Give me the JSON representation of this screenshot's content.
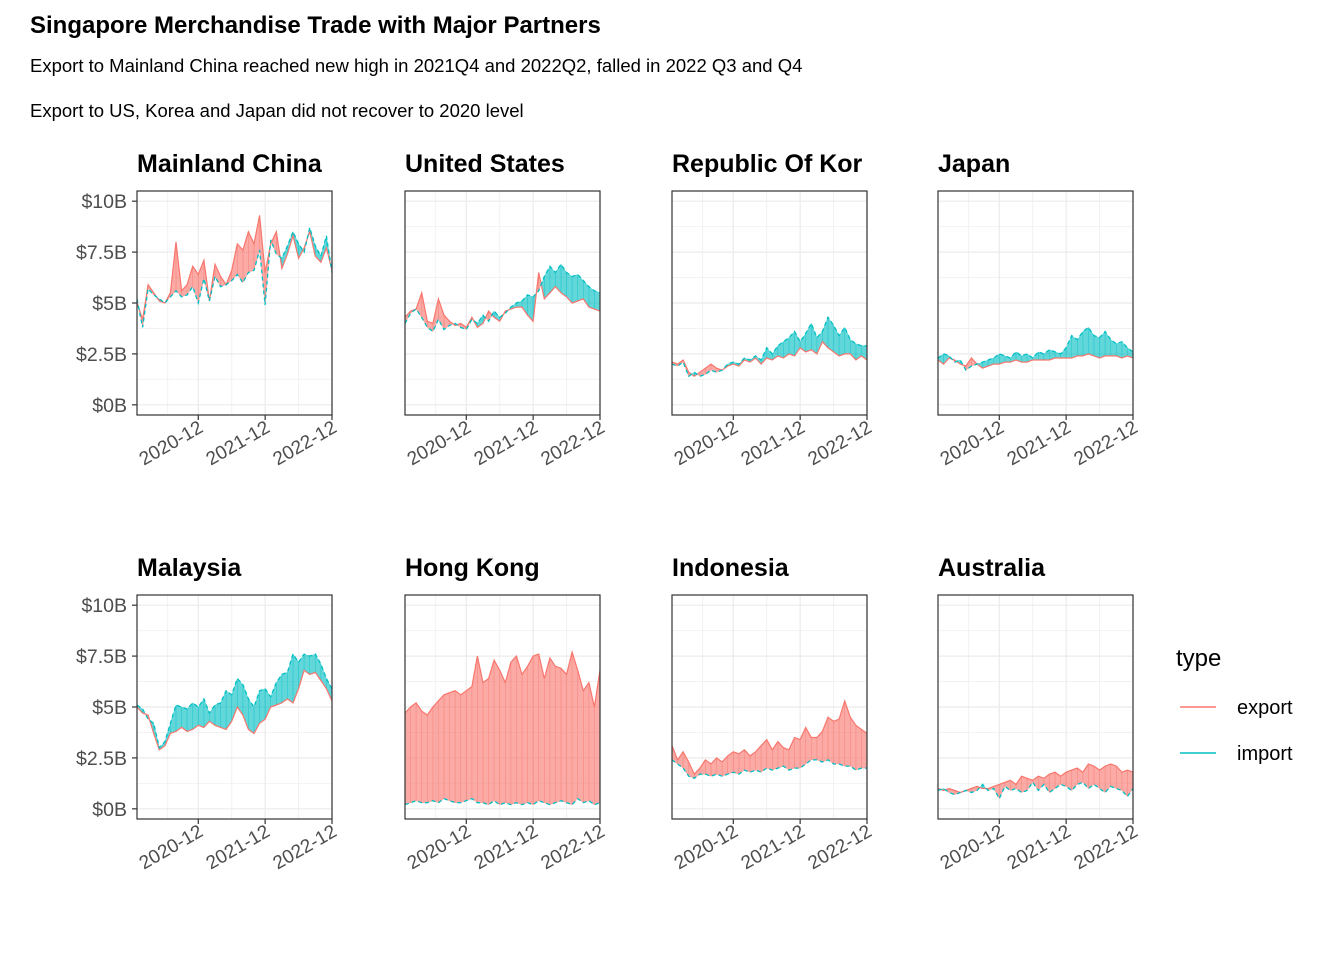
{
  "chart_data": {
    "type": "area",
    "title": "Singapore Merchandise Trade with Major Partners",
    "subtitle_lines": [
      "Export to Mainland China reached new high in 2021Q4 and 2022Q2, falled in 2022 Q3 and Q4",
      "Export to US, Korea and Japan did not recover to 2020 level"
    ],
    "unit": "billion SGD",
    "x_range": [
      "2020-01",
      "2022-12"
    ],
    "x_ticks": [
      "2020-12",
      "2021-12",
      "2022-12"
    ],
    "y_range": [
      0,
      10
    ],
    "y_ticks": [
      "$0B",
      "$2.5B",
      "$5B",
      "$7.5B",
      "$10B"
    ],
    "y_tick_values": [
      0,
      2.5,
      5,
      7.5,
      10
    ],
    "legend": {
      "title": "type",
      "position": "right",
      "entries": [
        "export",
        "import"
      ]
    },
    "colors": {
      "export": "#F8766D",
      "import": "#00BFC4",
      "export_fill": "#F8766D",
      "import_fill": "#00BFC4"
    },
    "x_months": [
      "2020-01",
      "2020-02",
      "2020-03",
      "2020-04",
      "2020-05",
      "2020-06",
      "2020-07",
      "2020-08",
      "2020-09",
      "2020-10",
      "2020-11",
      "2020-12",
      "2021-01",
      "2021-02",
      "2021-03",
      "2021-04",
      "2021-05",
      "2021-06",
      "2021-07",
      "2021-08",
      "2021-09",
      "2021-10",
      "2021-11",
      "2021-12",
      "2022-01",
      "2022-02",
      "2022-03",
      "2022-04",
      "2022-05",
      "2022-06",
      "2022-07",
      "2022-08",
      "2022-09",
      "2022-10",
      "2022-11",
      "2022-12"
    ],
    "panels": [
      {
        "name": "Mainland China",
        "export": [
          5.0,
          4.2,
          5.9,
          5.5,
          5.1,
          5.0,
          5.5,
          8.0,
          5.6,
          5.9,
          6.8,
          6.4,
          7.1,
          5.1,
          6.9,
          6.3,
          5.9,
          6.6,
          7.9,
          7.6,
          8.5,
          7.9,
          9.3,
          6.5,
          7.9,
          8.5,
          6.7,
          7.4,
          8.3,
          7.2,
          7.7,
          8.5,
          7.3,
          7.0,
          7.7,
          6.6
        ],
        "import": [
          5.2,
          3.8,
          5.7,
          5.4,
          5.2,
          5.0,
          5.3,
          5.6,
          5.3,
          5.4,
          5.8,
          5.0,
          6.2,
          5.1,
          6.3,
          5.8,
          5.9,
          6.1,
          6.4,
          6.0,
          6.5,
          6.6,
          7.6,
          4.9,
          8.1,
          7.4,
          7.2,
          7.8,
          8.5,
          7.9,
          7.5,
          8.7,
          7.8,
          7.3,
          8.3,
          6.5
        ]
      },
      {
        "name": "United States",
        "export": [
          4.3,
          4.6,
          4.7,
          5.5,
          4.1,
          4.0,
          5.2,
          4.4,
          4.1,
          3.9,
          4.0,
          3.8,
          4.3,
          3.8,
          4.0,
          4.6,
          4.3,
          4.1,
          4.6,
          4.7,
          4.8,
          4.8,
          4.4,
          4.1,
          6.5,
          5.2,
          5.5,
          5.8,
          5.5,
          5.3,
          5.0,
          5.1,
          5.2,
          4.8,
          4.7,
          4.6
        ],
        "import": [
          4.0,
          4.5,
          4.7,
          4.3,
          3.8,
          3.6,
          4.2,
          3.7,
          3.9,
          4.0,
          3.8,
          3.7,
          4.2,
          4.0,
          4.4,
          4.1,
          4.6,
          4.3,
          4.5,
          4.8,
          5.0,
          5.1,
          5.4,
          5.3,
          5.6,
          6.3,
          6.8,
          6.5,
          6.9,
          6.5,
          6.3,
          6.4,
          6.1,
          5.8,
          5.6,
          5.5
        ]
      },
      {
        "name": "Republic Of Kor",
        "export": [
          2.1,
          2.0,
          2.2,
          1.6,
          1.4,
          1.6,
          1.8,
          2.0,
          1.8,
          1.7,
          1.9,
          2.0,
          1.9,
          2.2,
          2.1,
          2.3,
          2.0,
          2.3,
          2.2,
          2.4,
          2.3,
          2.5,
          2.4,
          2.8,
          2.6,
          2.7,
          2.5,
          3.1,
          2.8,
          2.6,
          2.4,
          2.5,
          2.5,
          2.2,
          2.4,
          2.2
        ],
        "import": [
          2.0,
          1.9,
          2.1,
          1.4,
          1.6,
          1.4,
          1.5,
          1.7,
          1.6,
          1.7,
          2.0,
          2.1,
          2.0,
          2.3,
          2.2,
          2.4,
          2.2,
          2.8,
          2.5,
          2.9,
          3.1,
          3.3,
          3.6,
          3.1,
          3.5,
          4.0,
          3.3,
          3.6,
          4.3,
          3.9,
          3.4,
          3.8,
          3.2,
          3.0,
          2.9,
          2.9
        ]
      },
      {
        "name": "Japan",
        "export": [
          2.2,
          2.0,
          2.3,
          2.2,
          2.0,
          1.9,
          2.3,
          2.0,
          1.8,
          1.9,
          2.0,
          2.0,
          2.1,
          2.1,
          2.2,
          2.1,
          2.1,
          2.2,
          2.2,
          2.2,
          2.2,
          2.3,
          2.3,
          2.3,
          2.3,
          2.4,
          2.4,
          2.5,
          2.4,
          2.3,
          2.4,
          2.4,
          2.4,
          2.3,
          2.4,
          2.3
        ],
        "import": [
          2.3,
          2.5,
          2.4,
          2.1,
          2.2,
          1.7,
          1.9,
          2.0,
          2.1,
          2.2,
          2.3,
          2.5,
          2.4,
          2.3,
          2.6,
          2.4,
          2.5,
          2.3,
          2.6,
          2.5,
          2.7,
          2.6,
          2.5,
          2.8,
          3.4,
          3.2,
          3.6,
          3.8,
          3.4,
          3.3,
          3.6,
          3.2,
          3.0,
          3.1,
          2.8,
          2.6
        ]
      },
      {
        "name": "Malaysia",
        "export": [
          5.0,
          4.7,
          4.6,
          3.7,
          2.9,
          3.1,
          3.7,
          3.8,
          4.0,
          3.8,
          3.9,
          4.1,
          4.0,
          4.3,
          4.1,
          4.0,
          3.9,
          4.3,
          5.0,
          4.6,
          3.9,
          3.7,
          4.2,
          4.4,
          5.0,
          5.1,
          5.2,
          5.4,
          5.2,
          5.9,
          6.8,
          6.6,
          6.7,
          6.3,
          5.9,
          5.3
        ],
        "import": [
          5.1,
          4.9,
          4.4,
          4.2,
          3.0,
          3.3,
          4.2,
          5.1,
          5.0,
          4.9,
          5.2,
          5.0,
          5.4,
          4.7,
          5.1,
          5.2,
          5.8,
          5.6,
          6.4,
          6.1,
          5.4,
          5.0,
          5.8,
          5.9,
          5.5,
          6.2,
          6.6,
          6.7,
          7.6,
          7.2,
          7.6,
          7.5,
          7.6,
          7.1,
          6.4,
          5.9
        ]
      },
      {
        "name": "Hong Kong",
        "export": [
          4.7,
          5.0,
          5.2,
          4.8,
          4.6,
          5.0,
          5.3,
          5.6,
          5.7,
          5.8,
          5.6,
          5.8,
          6.0,
          7.5,
          6.2,
          6.4,
          7.3,
          6.8,
          6.2,
          7.2,
          7.5,
          6.6,
          7.0,
          7.5,
          7.6,
          6.4,
          7.4,
          7.0,
          6.9,
          6.6,
          7.7,
          6.8,
          5.8,
          6.2,
          5.0,
          6.8
        ],
        "import": [
          0.2,
          0.3,
          0.4,
          0.3,
          0.3,
          0.4,
          0.3,
          0.5,
          0.4,
          0.3,
          0.3,
          0.4,
          0.5,
          0.3,
          0.3,
          0.2,
          0.4,
          0.2,
          0.3,
          0.2,
          0.3,
          0.2,
          0.3,
          0.2,
          0.4,
          0.3,
          0.2,
          0.3,
          0.4,
          0.3,
          0.2,
          0.5,
          0.3,
          0.4,
          0.2,
          0.3
        ]
      },
      {
        "name": "Indonesia",
        "export": [
          3.1,
          2.4,
          2.8,
          2.3,
          1.7,
          2.0,
          2.4,
          2.2,
          2.5,
          2.3,
          2.6,
          2.8,
          2.7,
          2.9,
          2.6,
          2.8,
          3.1,
          3.4,
          2.9,
          3.3,
          3.0,
          2.9,
          3.5,
          3.4,
          4.0,
          3.5,
          3.5,
          3.8,
          4.5,
          4.3,
          4.4,
          5.3,
          4.5,
          4.1,
          3.9,
          3.7
        ],
        "import": [
          2.4,
          2.2,
          2.0,
          1.6,
          1.5,
          1.7,
          1.7,
          1.6,
          1.7,
          1.6,
          1.7,
          1.8,
          1.7,
          1.9,
          1.8,
          1.9,
          1.8,
          2.0,
          1.9,
          2.0,
          2.1,
          1.9,
          2.0,
          2.0,
          2.2,
          2.4,
          2.4,
          2.3,
          2.4,
          2.2,
          2.2,
          2.1,
          2.1,
          1.9,
          2.0,
          2.0
        ]
      },
      {
        "name": "Australia",
        "export": [
          1.0,
          0.9,
          1.0,
          0.9,
          0.8,
          0.9,
          1.0,
          1.1,
          1.0,
          1.0,
          1.1,
          1.2,
          1.3,
          1.4,
          1.2,
          1.6,
          1.5,
          1.4,
          1.6,
          1.5,
          1.7,
          1.8,
          1.6,
          1.8,
          1.9,
          2.0,
          1.8,
          2.2,
          2.1,
          1.9,
          2.1,
          2.2,
          2.1,
          1.8,
          1.9,
          1.8
        ],
        "import": [
          0.9,
          1.0,
          0.8,
          0.7,
          0.8,
          0.9,
          0.8,
          0.9,
          1.2,
          0.9,
          1.0,
          0.5,
          1.1,
          0.9,
          1.0,
          0.8,
          0.9,
          1.3,
          0.9,
          1.2,
          0.8,
          1.0,
          1.2,
          1.1,
          0.9,
          1.2,
          1.3,
          1.0,
          1.2,
          1.0,
          0.8,
          1.1,
          1.0,
          0.9,
          0.6,
          1.0
        ]
      }
    ]
  }
}
